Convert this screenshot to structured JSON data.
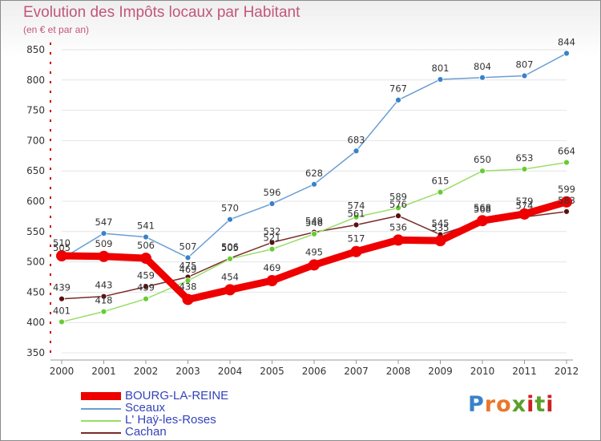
{
  "title": "Evolution des Impôts locaux par Habitant",
  "subtitle": "(en € et par an)",
  "logo": "Proxiti",
  "chart_data": {
    "type": "line",
    "title": "Evolution des Impôts locaux par Habitant",
    "ylabel": "(en € et par an)",
    "categories": [
      "2000",
      "2001",
      "2002",
      "2003",
      "2004",
      "2005",
      "2006",
      "2007",
      "2008",
      "2009",
      "2010",
      "2011",
      "2012"
    ],
    "ylim": [
      350,
      850
    ],
    "yticks": [
      350,
      400,
      450,
      500,
      550,
      600,
      650,
      700,
      750,
      800,
      850
    ],
    "series": [
      {
        "name": "Cachan",
        "color": "#7a2a2a",
        "marker": "#5a1010",
        "values": [
          439,
          443,
          459,
          475,
          506,
          532,
          549,
          561,
          576,
          545,
          568,
          574,
          583
        ]
      },
      {
        "name": "L' Haÿ-les-Roses",
        "color": "#99dd66",
        "marker": "#66cc33",
        "values": [
          401,
          418,
          439,
          469,
          505,
          521,
          546,
          574,
          589,
          615,
          650,
          653,
          664
        ]
      },
      {
        "name": "Sceaux",
        "color": "#6a9ed4",
        "marker": "#3a82c8",
        "values": [
          505,
          547,
          541,
          507,
          570,
          596,
          628,
          683,
          767,
          801,
          804,
          807,
          844
        ]
      },
      {
        "name": "BOURG-LA-REINE",
        "color": "#ee0000",
        "marker": "#ee0000",
        "values": [
          510,
          509,
          506,
          438,
          454,
          469,
          495,
          517,
          536,
          535,
          568,
          579,
          599
        ]
      }
    ],
    "legend": [
      "BOURG-LA-REINE",
      "Sceaux",
      "L' Haÿ-les-Roses",
      "Cachan"
    ]
  }
}
